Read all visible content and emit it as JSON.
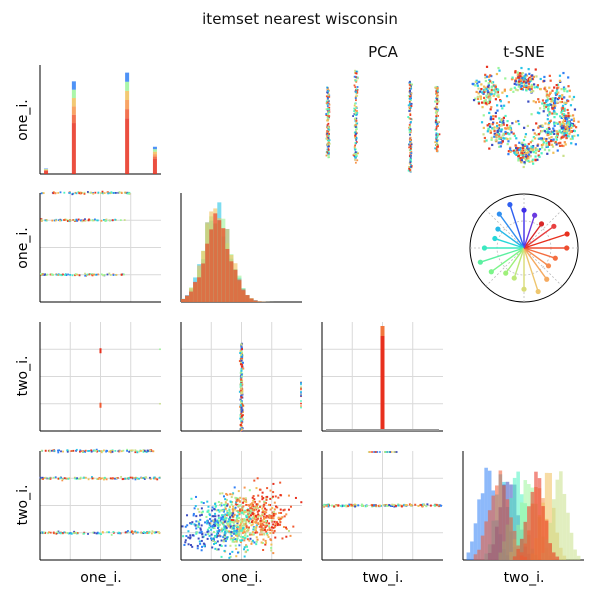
{
  "title": "itemset nearest wisconsin",
  "col_titles": {
    "pca": "PCA",
    "tsne": "t-SNE"
  },
  "x_labels": [
    "one_i.",
    "one_i.",
    "two_i.",
    "two_i."
  ],
  "y_labels": [
    "one_i.",
    "one_i.",
    "two_i.",
    "two_i."
  ],
  "palette": [
    "#3b4cc0",
    "#2f7ff5",
    "#27c4e6",
    "#4cf2c2",
    "#9cf59a",
    "#c9e08a",
    "#f0c05a",
    "#f7944a",
    "#f05a32",
    "#e8301e"
  ],
  "chart_data": {
    "type": "scatter",
    "layout": "pair-plot grid",
    "variables": [
      "one_i.",
      "one_i.",
      "two_i.",
      "two_i."
    ],
    "title": "itemset nearest wisconsin",
    "panels": [
      {
        "row": 0,
        "col": 0,
        "kind": "histogram",
        "x": [
          0.05,
          0.28,
          0.72,
          0.95
        ],
        "heights": [
          0.05,
          0.85,
          0.93,
          0.25
        ],
        "grid": false
      },
      {
        "row": 0,
        "col": 2,
        "kind": "scatter",
        "label": "PCA",
        "grid": false
      },
      {
        "row": 0,
        "col": 3,
        "kind": "scatter",
        "label": "t-SNE",
        "grid": false
      },
      {
        "row": 1,
        "col": 0,
        "kind": "scatter",
        "y_levels": [
          0.25,
          0.75,
          1.0
        ],
        "grid": true
      },
      {
        "row": 1,
        "col": 1,
        "kind": "histogram",
        "skew": "right",
        "peak_x": 0.3,
        "grid": false
      },
      {
        "row": 1,
        "col": 3,
        "kind": "polar-stems",
        "stems": 20,
        "grid": true
      },
      {
        "row": 2,
        "col": 0,
        "kind": "scatter",
        "grid": true
      },
      {
        "row": 2,
        "col": 1,
        "kind": "scatter",
        "x_level": 0.5,
        "grid": true
      },
      {
        "row": 2,
        "col": 2,
        "kind": "histogram",
        "peak_x": 0.5,
        "grid": true
      },
      {
        "row": 3,
        "col": 0,
        "kind": "scatter",
        "y_levels": [
          0.25,
          0.75,
          1.0
        ],
        "grid": true
      },
      {
        "row": 3,
        "col": 1,
        "kind": "scatter",
        "grid": true
      },
      {
        "row": 3,
        "col": 2,
        "kind": "scatter",
        "y_level": 0.5,
        "grid": true
      },
      {
        "row": 3,
        "col": 3,
        "kind": "histogram",
        "groups": 10,
        "grid": false
      }
    ]
  }
}
